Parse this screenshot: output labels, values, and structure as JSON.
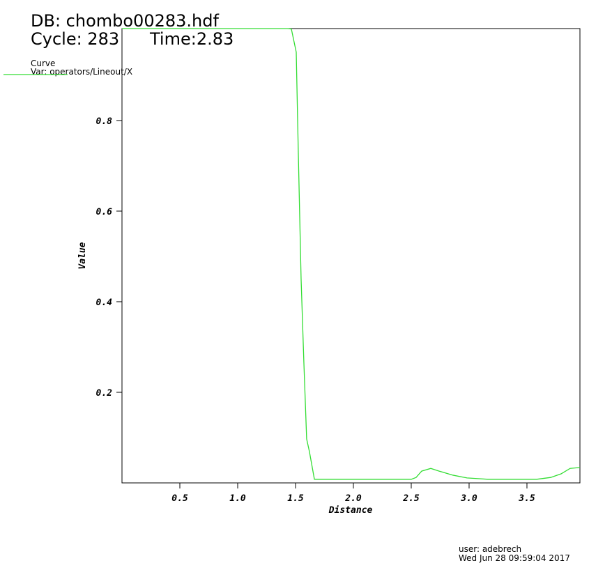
{
  "chart_data": {
    "type": "line",
    "db_label": "DB: chombo00283.hdf",
    "cycle_label": "Cycle: 283",
    "time_label": "Time:2.83",
    "legend_title": "Curve",
    "xlabel": "Distance",
    "ylabel": "Value",
    "user_label": "user: adebrech",
    "date_label": "Wed Jun 28 09:59:04 2017",
    "x": [
      0,
      1.0,
      1.43,
      1.464,
      1.506,
      1.524,
      1.548,
      1.572,
      1.596,
      1.62,
      1.663,
      2.0,
      2.5,
      2.542,
      2.59,
      2.669,
      2.741,
      2.861,
      2.982,
      3.102,
      3.163,
      3.584,
      3.705,
      3.795,
      3.873,
      3.958
    ],
    "series": [
      {
        "name": "Var: operators/Lineout/X",
        "color": "#33dd33",
        "values": [
          1.003,
          1.003,
          1.003,
          1.002,
          0.951,
          0.728,
          0.451,
          0.266,
          0.097,
          0.069,
          0.008,
          0.008,
          0.008,
          0.012,
          0.026,
          0.032,
          0.026,
          0.017,
          0.011,
          0.009,
          0.008,
          0.008,
          0.012,
          0.02,
          0.032,
          0.034
        ]
      }
    ],
    "xlim": [
      0,
      3.958
    ],
    "ylim": [
      0,
      1.003
    ],
    "xticks": [
      0.5,
      {
        "value": 1,
        "label": "1.0"
      },
      1.5,
      {
        "value": 2,
        "label": "2.0"
      },
      2.5,
      {
        "value": 3,
        "label": "3.0"
      },
      3.5
    ],
    "yticks": [
      0.2,
      0.4,
      0.6,
      0.8
    ]
  }
}
